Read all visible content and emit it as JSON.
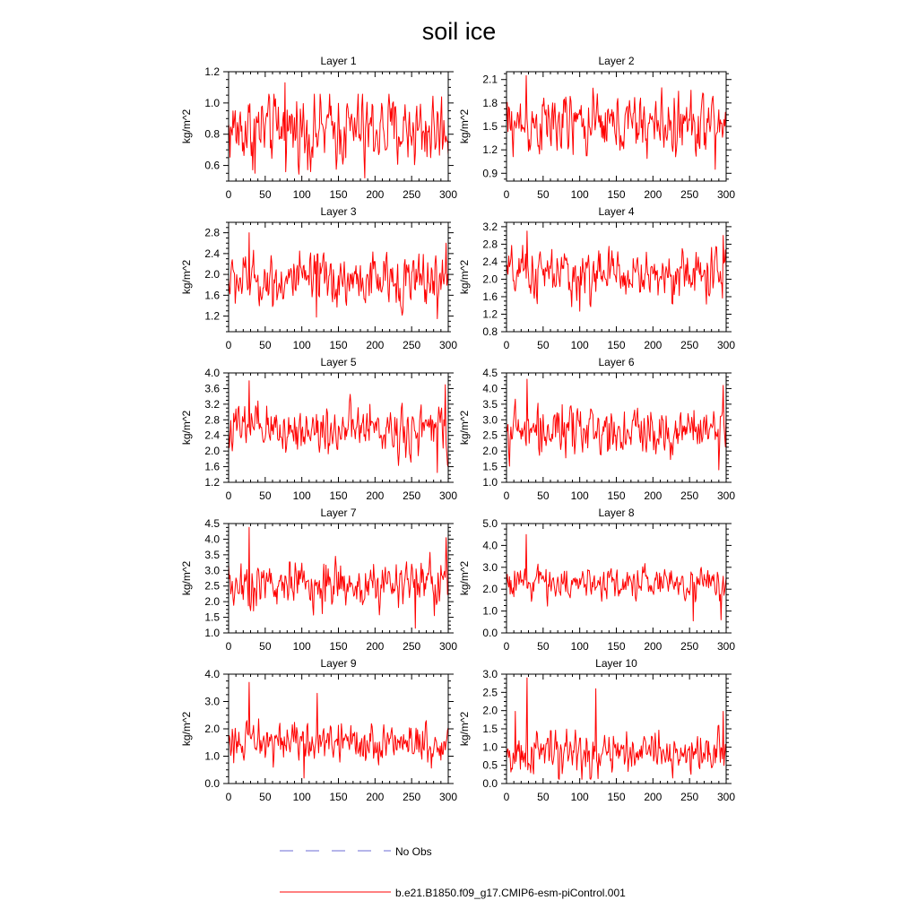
{
  "chart_data": {
    "type": "line",
    "title": "soil ice",
    "ylabel": "kg/m^2",
    "xlabel": "",
    "xlim": [
      0,
      300
    ],
    "xticks": [
      0,
      50,
      100,
      150,
      200,
      250,
      300
    ],
    "legend": {
      "placement": "bottom",
      "entries": [
        {
          "label": "No Obs",
          "style": "dashed",
          "color": "#6b6bd6"
        },
        {
          "label": "b.e21.B1850.f09_g17.CMIP6-esm-piControl.001",
          "style": "solid",
          "color": "#ff0000"
        }
      ]
    },
    "series_color": "#ff0000",
    "panels": [
      {
        "title": "Layer 1",
        "ylim": [
          0.5,
          1.2
        ],
        "yticks": [
          0.6,
          0.8,
          1.0,
          1.2
        ],
        "tick_decimals": 1,
        "mean": 0.83,
        "amp": 0.18,
        "min": 0.52,
        "max": 1.13,
        "spikes": [
          [
            77,
            1.13
          ],
          [
            186,
            0.52
          ],
          [
            36,
            0.55
          ],
          [
            112,
            0.56
          ]
        ]
      },
      {
        "title": "Layer 2",
        "ylim": [
          0.8,
          2.2
        ],
        "yticks": [
          0.9,
          1.2,
          1.5,
          1.8,
          2.1
        ],
        "tick_decimals": 1,
        "mean": 1.52,
        "amp": 0.3,
        "min": 0.95,
        "max": 2.15,
        "spikes": [
          [
            27,
            2.15
          ],
          [
            285,
            0.95
          ]
        ]
      },
      {
        "title": "Layer 3",
        "ylim": [
          0.9,
          3.0
        ],
        "yticks": [
          1.2,
          1.6,
          2.0,
          2.4,
          2.8
        ],
        "tick_decimals": 1,
        "mean": 1.88,
        "amp": 0.38,
        "min": 1.15,
        "max": 2.8,
        "spikes": [
          [
            28,
            2.8
          ],
          [
            120,
            1.18
          ],
          [
            285,
            1.15
          ],
          [
            297,
            2.6
          ]
        ]
      },
      {
        "title": "Layer 4",
        "ylim": [
          0.8,
          3.3
        ],
        "yticks": [
          0.8,
          1.2,
          1.6,
          2.0,
          2.4,
          2.8,
          3.2
        ],
        "tick_decimals": 1,
        "mean": 2.1,
        "amp": 0.45,
        "min": 1.25,
        "max": 3.1,
        "spikes": [
          [
            28,
            3.1
          ],
          [
            296,
            3.0
          ],
          [
            100,
            1.27
          ]
        ]
      },
      {
        "title": "Layer 5",
        "ylim": [
          1.2,
          4.0
        ],
        "yticks": [
          1.2,
          1.6,
          2.0,
          2.4,
          2.8,
          3.2,
          3.6,
          4.0
        ],
        "tick_decimals": 1,
        "mean": 2.55,
        "amp": 0.5,
        "min": 1.45,
        "max": 3.8,
        "spikes": [
          [
            28,
            3.8
          ],
          [
            296,
            3.7
          ],
          [
            285,
            1.45
          ]
        ]
      },
      {
        "title": "Layer 6",
        "ylim": [
          1.0,
          4.5
        ],
        "yticks": [
          1.0,
          1.5,
          2.0,
          2.5,
          3.0,
          3.5,
          4.0,
          4.5
        ],
        "tick_decimals": 1,
        "mean": 2.65,
        "amp": 0.6,
        "min": 1.4,
        "max": 4.3,
        "spikes": [
          [
            28,
            4.3
          ],
          [
            296,
            4.1
          ],
          [
            290,
            1.4
          ]
        ]
      },
      {
        "title": "Layer 7",
        "ylim": [
          1.0,
          4.5
        ],
        "yticks": [
          1.0,
          1.5,
          2.0,
          2.5,
          3.0,
          3.5,
          4.0,
          4.5
        ],
        "tick_decimals": 1,
        "mean": 2.55,
        "amp": 0.6,
        "min": 1.15,
        "max": 4.38,
        "spikes": [
          [
            28,
            4.38
          ],
          [
            297,
            4.05
          ],
          [
            255,
            1.15
          ]
        ]
      },
      {
        "title": "Layer 8",
        "ylim": [
          0.0,
          5.0
        ],
        "yticks": [
          0.0,
          1.0,
          2.0,
          3.0,
          4.0,
          5.0
        ],
        "tick_decimals": 1,
        "mean": 2.3,
        "amp": 0.55,
        "min": 0.55,
        "max": 4.5,
        "spikes": [
          [
            27,
            4.5
          ],
          [
            293,
            0.6
          ],
          [
            255,
            0.55
          ]
        ]
      },
      {
        "title": "Layer 9",
        "ylim": [
          0.0,
          4.0
        ],
        "yticks": [
          0.0,
          1.0,
          2.0,
          3.0,
          4.0
        ],
        "tick_decimals": 1,
        "mean": 1.5,
        "amp": 0.55,
        "min": 0.2,
        "max": 3.7,
        "spikes": [
          [
            28,
            3.7
          ],
          [
            121,
            3.3
          ],
          [
            103,
            0.2
          ]
        ]
      },
      {
        "title": "Layer 10",
        "ylim": [
          0.0,
          3.0
        ],
        "yticks": [
          0.0,
          0.5,
          1.0,
          1.5,
          2.0,
          2.5,
          3.0
        ],
        "tick_decimals": 1,
        "mean": 0.8,
        "amp": 0.45,
        "min": 0.0,
        "max": 2.9,
        "spikes": [
          [
            28,
            2.9
          ],
          [
            122,
            2.6
          ],
          [
            12,
            1.98
          ],
          [
            296,
            1.98
          ]
        ]
      }
    ]
  }
}
